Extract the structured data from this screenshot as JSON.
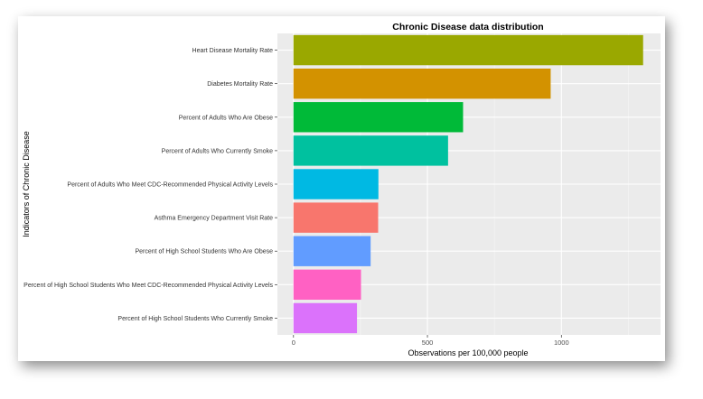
{
  "chart_data": {
    "type": "bar",
    "orientation": "horizontal",
    "title": "Chronic Disease data distribution",
    "xlabel": "Observations per 100,000 people",
    "ylabel": "Indicators of Chronic Disease",
    "xlim": [
      -60,
      1370
    ],
    "xticks": [
      0,
      500,
      1000
    ],
    "grid": true,
    "legend": "none",
    "categories": [
      "Heart Disease Mortality Rate",
      "Diabetes Mortality Rate",
      "Percent of Adults Who Are Obese",
      "Percent of Adults Who Currently Smoke",
      "Percent of Adults Who Meet CDC-Recommended Physical Activity Levels",
      "Asthma Emergency Department Visit Rate",
      "Percent of High School Students Who Are Obese",
      "Percent of High School Students Who Meet CDC-Recommended Physical Activity Levels",
      "Percent of High School Students Who Currently Smoke"
    ],
    "values": [
      1305,
      960,
      633,
      577,
      317,
      316,
      288,
      252,
      237
    ],
    "colors": [
      "#9aa800",
      "#d39200",
      "#00ba38",
      "#00c19f",
      "#00b9e3",
      "#f8766d",
      "#619cff",
      "#ff61c3",
      "#db72fb"
    ]
  }
}
